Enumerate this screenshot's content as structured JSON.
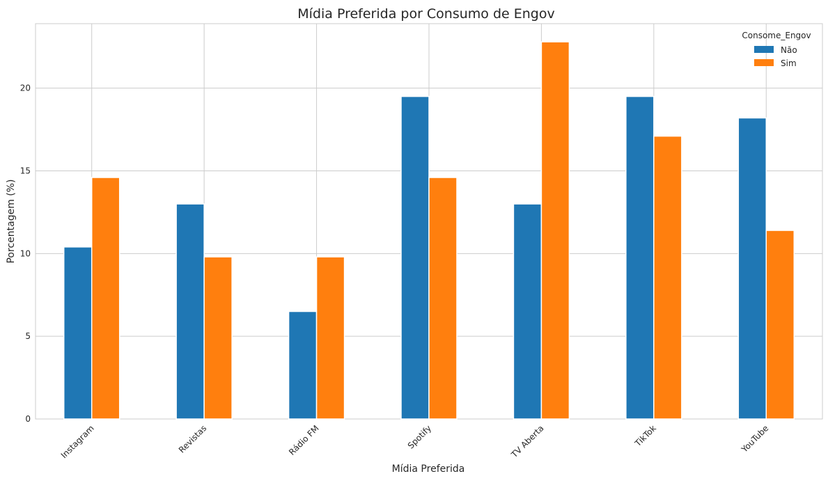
{
  "chart_data": {
    "type": "bar",
    "title": "Mídia Preferida por Consumo de Engov",
    "xlabel": "Mídia Preferida",
    "ylabel": "Porcentagem (%)",
    "categories": [
      "Instagram",
      "Revistas",
      "Rádio FM",
      "Spotify",
      "TV Aberta",
      "TikTok",
      "YouTube"
    ],
    "series": [
      {
        "name": "Não",
        "color": "#1f77b4",
        "values": [
          10.4,
          13.0,
          6.5,
          19.5,
          13.0,
          19.5,
          18.2
        ]
      },
      {
        "name": "Sim",
        "color": "#ff7f0e",
        "values": [
          14.6,
          9.8,
          9.8,
          14.6,
          22.8,
          17.1,
          11.4
        ]
      }
    ],
    "ylim": [
      0,
      23.9
    ],
    "yticks": [
      0,
      5,
      10,
      15,
      20
    ],
    "grid": true,
    "legend": {
      "title": "Consome_Engov",
      "placement": "top-right"
    }
  }
}
